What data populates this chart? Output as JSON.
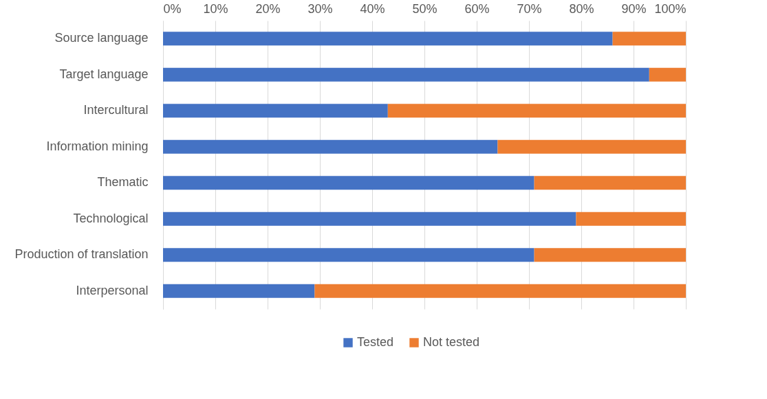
{
  "chart_data": {
    "type": "bar",
    "orientation": "horizontal",
    "stacked": true,
    "categories": [
      "Source language",
      "Target language",
      "Intercultural",
      "Information mining",
      "Thematic",
      "Technological",
      "Production of translation",
      "Interpersonal"
    ],
    "series": [
      {
        "name": "Tested",
        "color": "#4472c4",
        "values": [
          86,
          93,
          43,
          64,
          71,
          79,
          71,
          29
        ]
      },
      {
        "name": "Not tested",
        "color": "#ed7d31",
        "values": [
          14,
          7,
          57,
          36,
          29,
          21,
          29,
          71
        ]
      }
    ],
    "xlim": [
      0,
      100
    ],
    "xticks": [
      {
        "value": 0,
        "label": "0%"
      },
      {
        "value": 10,
        "label": "10%"
      },
      {
        "value": 20,
        "label": "20%"
      },
      {
        "value": 30,
        "label": "30%"
      },
      {
        "value": 40,
        "label": "40%"
      },
      {
        "value": 50,
        "label": "50%"
      },
      {
        "value": 60,
        "label": "60%"
      },
      {
        "value": 70,
        "label": "70%"
      },
      {
        "value": 80,
        "label": "80%"
      },
      {
        "value": 90,
        "label": "90%"
      },
      {
        "value": 100,
        "label": "100%"
      }
    ],
    "grid": "x",
    "legend": "bottom"
  }
}
